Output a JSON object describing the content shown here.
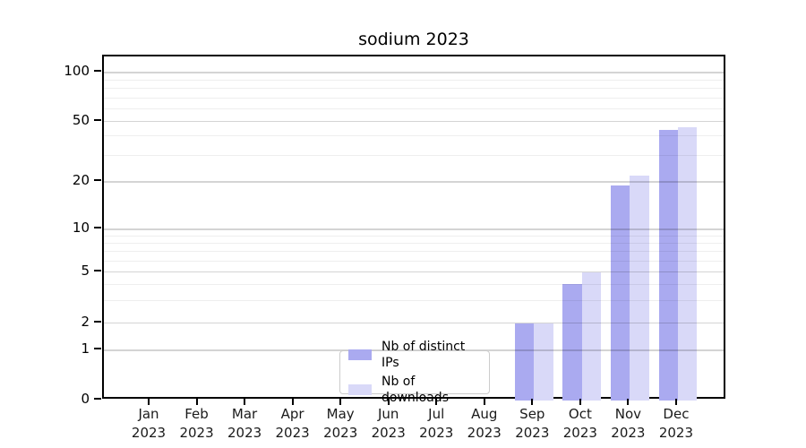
{
  "chart_data": {
    "type": "bar",
    "title": "sodium 2023",
    "categories": [
      {
        "month": "Jan",
        "year": "2023"
      },
      {
        "month": "Feb",
        "year": "2023"
      },
      {
        "month": "Mar",
        "year": "2023"
      },
      {
        "month": "Apr",
        "year": "2023"
      },
      {
        "month": "May",
        "year": "2023"
      },
      {
        "month": "Jun",
        "year": "2023"
      },
      {
        "month": "Jul",
        "year": "2023"
      },
      {
        "month": "Aug",
        "year": "2023"
      },
      {
        "month": "Sep",
        "year": "2023"
      },
      {
        "month": "Oct",
        "year": "2023"
      },
      {
        "month": "Nov",
        "year": "2023"
      },
      {
        "month": "Dec",
        "year": "2023"
      }
    ],
    "series": [
      {
        "name": "Nb of distinct IPs",
        "color": "#aaaaf0",
        "values": [
          0,
          0,
          0,
          0,
          0,
          0,
          0,
          0,
          2,
          4,
          19,
          44
        ]
      },
      {
        "name": "Nb of downloads",
        "color": "#d9d9f8",
        "values": [
          0,
          0,
          0,
          0,
          0,
          0,
          0,
          0,
          2,
          5,
          22,
          46
        ]
      }
    ],
    "y_axis": {
      "scale": "log-like (compressed near 0)",
      "major_ticks": [
        0,
        1,
        2,
        5,
        10,
        20,
        50,
        100
      ],
      "minor_ticks": [
        3,
        4,
        6,
        7,
        8,
        9,
        30,
        40,
        60,
        70,
        80,
        90
      ],
      "ylim": [
        0,
        120
      ],
      "grid": "on"
    },
    "legend": {
      "position": "bottom-center",
      "entries": [
        "Nb of distinct IPs",
        "Nb of downloads"
      ]
    }
  }
}
